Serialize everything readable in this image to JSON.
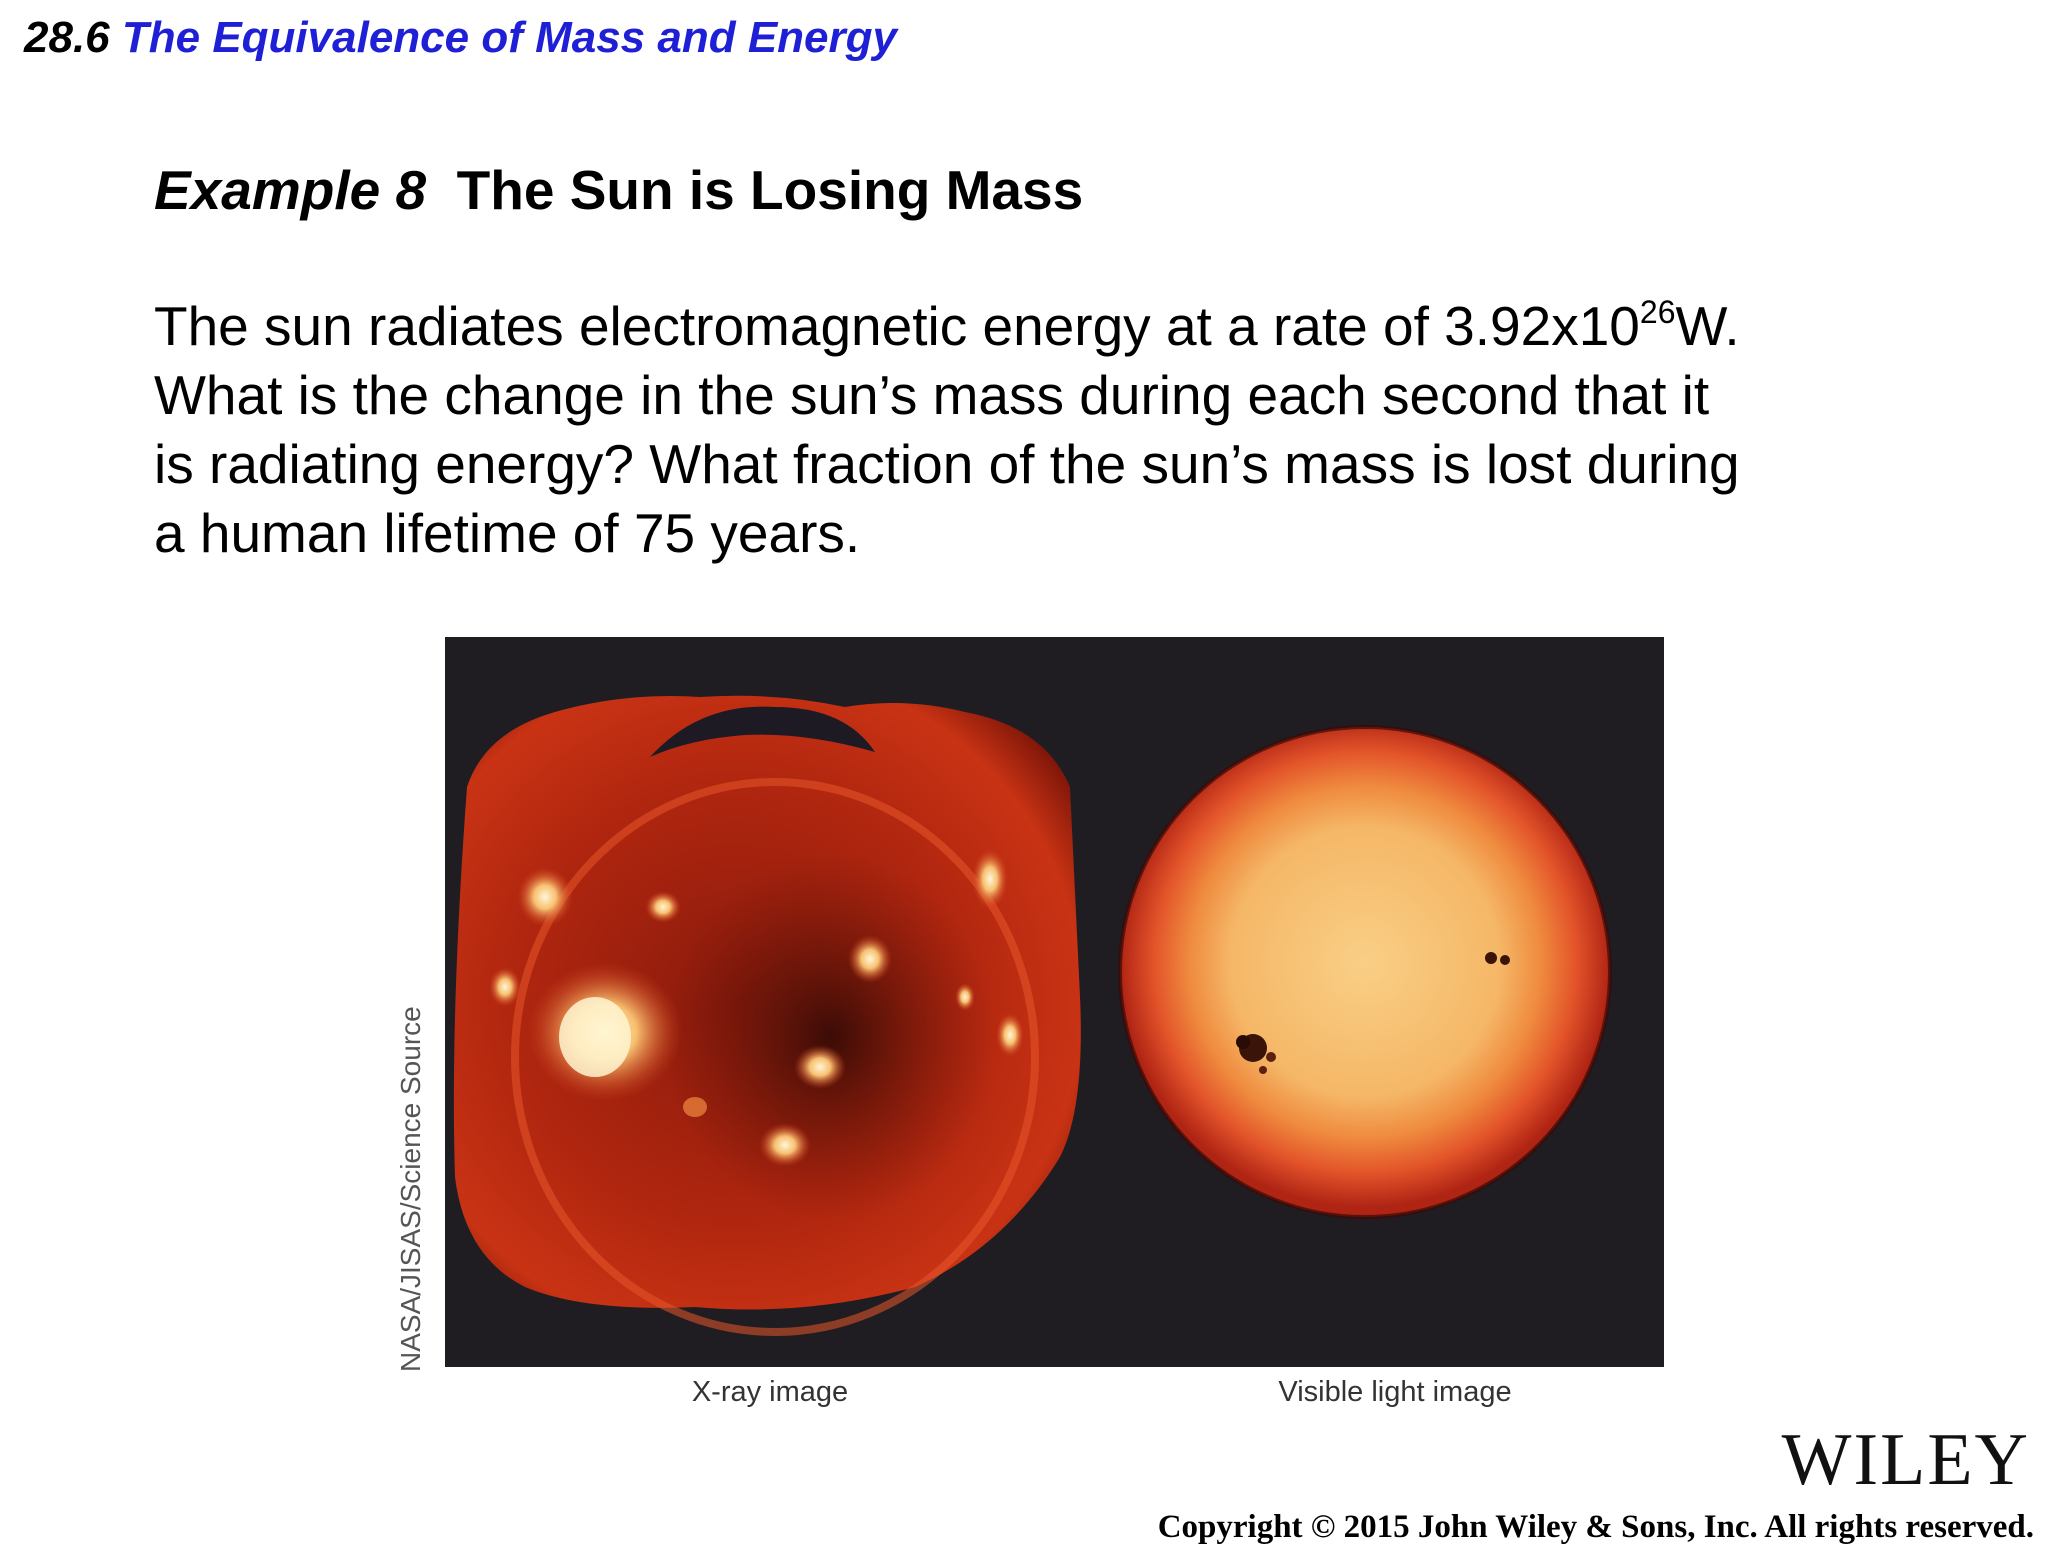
{
  "section": {
    "number": "28.6",
    "title": "The Equivalence of Mass and Energy"
  },
  "example": {
    "label": "Example 8",
    "title": "The Sun is Losing Mass"
  },
  "problem": {
    "line1_prefix": "The sun radiates electromagnetic energy at a rate of 3.92x10",
    "line1_exponent": "26",
    "line1_suffix": "W.",
    "line2": "What is the change in the sun’s mass during each second that it",
    "line3": "is radiating energy?  What fraction of the sun’s mass is lost during",
    "line4": "a human lifetime of 75 years."
  },
  "figure": {
    "credit": "NASA/JISAS/Science Source",
    "caption_left": "X-ray image",
    "caption_right": "Visible light image"
  },
  "publisher": {
    "logo": "WILEY",
    "copyright": "Copyright © 2015 John Wiley & Sons, Inc. All rights reserved."
  },
  "colors": {
    "section_title": "#1f1fd6",
    "figure_background": "#201d22"
  }
}
